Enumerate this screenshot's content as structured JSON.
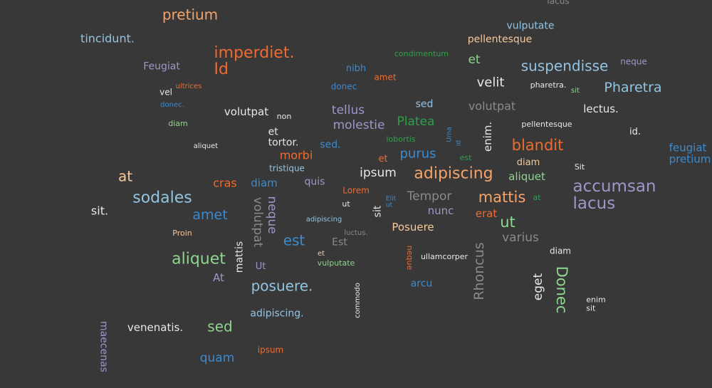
{
  "colors": {
    "background": "#383838",
    "orange_light": "#f4a46a",
    "orange": "#ee6b2f",
    "blue_light": "#93c4e2",
    "blue": "#3d8bcf",
    "purple": "#9c97c9",
    "green_light": "#8fd48f",
    "green": "#2fa04a",
    "peach": "#f7c89a",
    "white": "#e8e8e8",
    "gray": "#8a8a8a"
  },
  "words": [
    {
      "text": "lacus",
      "color": "gray"
    },
    {
      "text": "pretium",
      "color": "orange_light"
    },
    {
      "text": "vulputate",
      "color": "blue_light"
    },
    {
      "text": "tincidunt.",
      "color": "blue_light"
    },
    {
      "text": "pellentesque",
      "color": "peach"
    },
    {
      "text": "imperdiet.\nId",
      "color": "orange"
    },
    {
      "text": "condimentum",
      "color": "green"
    },
    {
      "text": "et",
      "color": "green_light"
    },
    {
      "text": "Feugiat",
      "color": "purple"
    },
    {
      "text": "nibh",
      "color": "blue"
    },
    {
      "text": "suspendisse",
      "color": "blue_light"
    },
    {
      "text": "neque",
      "color": "purple"
    },
    {
      "text": "amet",
      "color": "orange"
    },
    {
      "text": "velit",
      "color": "white"
    },
    {
      "text": "ultrices",
      "color": "orange"
    },
    {
      "text": "donec",
      "color": "blue"
    },
    {
      "text": "pharetra.",
      "color": "white"
    },
    {
      "text": "sit",
      "color": "green_light"
    },
    {
      "text": "Pharetra",
      "color": "blue_light"
    },
    {
      "text": "vel",
      "color": "white"
    },
    {
      "text": "donec.",
      "color": "blue"
    },
    {
      "text": "sed",
      "color": "blue_light"
    },
    {
      "text": "volutpat",
      "color": "gray"
    },
    {
      "text": "volutpat",
      "color": "white"
    },
    {
      "text": "non",
      "color": "white"
    },
    {
      "text": "tellus",
      "color": "purple"
    },
    {
      "text": "lectus.",
      "color": "white"
    },
    {
      "text": "Platea",
      "color": "green"
    },
    {
      "text": "diam",
      "color": "green_light"
    },
    {
      "text": "molestie",
      "color": "purple"
    },
    {
      "text": "pellentesque",
      "color": "white"
    },
    {
      "text": "Urna",
      "color": "blue"
    },
    {
      "text": "id",
      "color": "blue"
    },
    {
      "text": "enim.",
      "color": "white"
    },
    {
      "text": "id.",
      "color": "white"
    },
    {
      "text": "et\ntortor.",
      "color": "white"
    },
    {
      "text": "lobortis",
      "color": "green"
    },
    {
      "text": "blandit",
      "color": "orange"
    },
    {
      "text": "aliquet",
      "color": "white"
    },
    {
      "text": "sed.",
      "color": "blue"
    },
    {
      "text": "purus",
      "color": "blue"
    },
    {
      "text": "feugiat\npretium",
      "color": "blue"
    },
    {
      "text": "morbi",
      "color": "orange"
    },
    {
      "text": "et",
      "color": "orange"
    },
    {
      "text": "est",
      "color": "green"
    },
    {
      "text": "diam",
      "color": "peach"
    },
    {
      "text": "Sit",
      "color": "white"
    },
    {
      "text": "tristique",
      "color": "blue_light"
    },
    {
      "text": "at",
      "color": "peach"
    },
    {
      "text": "ipsum",
      "color": "white"
    },
    {
      "text": "adipiscing",
      "color": "orange_light"
    },
    {
      "text": "aliquet",
      "color": "green_light"
    },
    {
      "text": "cras",
      "color": "orange"
    },
    {
      "text": "diam",
      "color": "blue"
    },
    {
      "text": "quis",
      "color": "purple"
    },
    {
      "text": "accumsan\nlacus",
      "color": "purple"
    },
    {
      "text": "sodales",
      "color": "blue_light"
    },
    {
      "text": "Lorem",
      "color": "orange"
    },
    {
      "text": "Tempor",
      "color": "gray"
    },
    {
      "text": "mattis",
      "color": "orange_light"
    },
    {
      "text": "at",
      "color": "green"
    },
    {
      "text": "Elit\nut",
      "color": "blue"
    },
    {
      "text": "ut",
      "color": "white"
    },
    {
      "text": "sit",
      "color": "white"
    },
    {
      "text": "sit.",
      "color": "white"
    },
    {
      "text": "amet",
      "color": "blue"
    },
    {
      "text": "volutpat",
      "color": "gray"
    },
    {
      "text": "neque",
      "color": "purple"
    },
    {
      "text": "nunc",
      "color": "purple"
    },
    {
      "text": "erat",
      "color": "orange"
    },
    {
      "text": "ut",
      "color": "green_light"
    },
    {
      "text": "adipiscing",
      "color": "blue_light"
    },
    {
      "text": "Posuere",
      "color": "peach"
    },
    {
      "text": "Proin",
      "color": "peach"
    },
    {
      "text": "luctus.",
      "color": "gray"
    },
    {
      "text": "est",
      "color": "blue"
    },
    {
      "text": "Est",
      "color": "gray"
    },
    {
      "text": "varius",
      "color": "gray"
    },
    {
      "text": "mattis",
      "color": "white"
    },
    {
      "text": "Rhoncus",
      "color": "gray"
    },
    {
      "text": "diam",
      "color": "white"
    },
    {
      "text": "aliquet",
      "color": "green_light"
    },
    {
      "text": "et",
      "color": "peach"
    },
    {
      "text": "neque",
      "color": "orange"
    },
    {
      "text": "ullamcorper",
      "color": "white"
    },
    {
      "text": "Ut",
      "color": "purple"
    },
    {
      "text": "vulputate",
      "color": "green_light"
    },
    {
      "text": "Donec",
      "color": "green_light"
    },
    {
      "text": "At",
      "color": "purple"
    },
    {
      "text": "eget",
      "color": "white"
    },
    {
      "text": "posuere.",
      "color": "blue_light"
    },
    {
      "text": "arcu",
      "color": "blue"
    },
    {
      "text": "enim\nsit",
      "color": "white"
    },
    {
      "text": "commodo",
      "color": "white"
    },
    {
      "text": "adipiscing.",
      "color": "blue_light"
    },
    {
      "text": "maecenas",
      "color": "purple"
    },
    {
      "text": "venenatis.",
      "color": "white"
    },
    {
      "text": "sed",
      "color": "green_light"
    },
    {
      "text": "ipsum",
      "color": "orange"
    },
    {
      "text": "quam",
      "color": "blue"
    }
  ]
}
